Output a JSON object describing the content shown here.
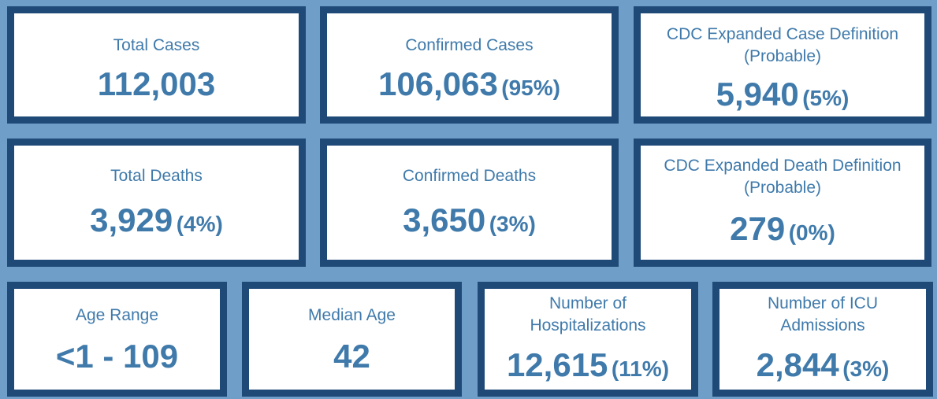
{
  "colors": {
    "background": "#6f9fc8",
    "card_border": "#1f4a78",
    "card_fill": "#ffffff",
    "text": "#3f7aab"
  },
  "cards": [
    {
      "label": "Total Cases",
      "value": "112,003",
      "percent": ""
    },
    {
      "label": "Confirmed Cases",
      "value": "106,063",
      "percent": "(95%)"
    },
    {
      "label_line1": "CDC Expanded Case Definition",
      "label_line2": "(Probable)",
      "value": "5,940",
      "percent": "(5%)"
    },
    {
      "label": "Total Deaths",
      "value": "3,929",
      "percent": "(4%)"
    },
    {
      "label": "Confirmed Deaths",
      "value": "3,650",
      "percent": "(3%)"
    },
    {
      "label_line1": "CDC Expanded Death Definition",
      "label_line2": "(Probable)",
      "value": "279",
      "percent": "(0%)"
    },
    {
      "label": "Age Range",
      "value": "<1 - 109",
      "percent": ""
    },
    {
      "label": "Median Age",
      "value": "42",
      "percent": ""
    },
    {
      "label_line1": "Number of",
      "label_line2": "Hospitalizations",
      "value": "12,615",
      "percent": "(11%)"
    },
    {
      "label_line1": "Number of ICU",
      "label_line2": "Admissions",
      "value": "2,844",
      "percent": "(3%)"
    }
  ]
}
